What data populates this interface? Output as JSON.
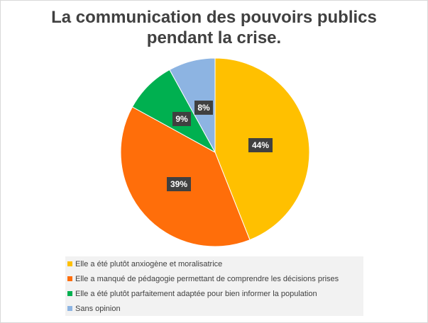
{
  "title_lines": [
    "La communication des pouvoirs publics",
    "pendant la crise."
  ],
  "chart_data": {
    "type": "pie",
    "title": "La communication des pouvoirs publics pendant la crise.",
    "categories": [
      "Elle a été plutôt anxiogène et moralisatrice",
      "Elle a manqué de pédagogie permettant de comprendre les décisions prises",
      "Elle a été plutôt parfaitement adaptée pour bien informer la population",
      "Sans opinion"
    ],
    "values": [
      44,
      39,
      9,
      8
    ],
    "labels": [
      "44%",
      "39%",
      "9%",
      "8%"
    ],
    "colors": [
      "#FFC000",
      "#FF6E0A",
      "#00B050",
      "#8DB4E2"
    ],
    "legend_position": "bottom-left"
  }
}
